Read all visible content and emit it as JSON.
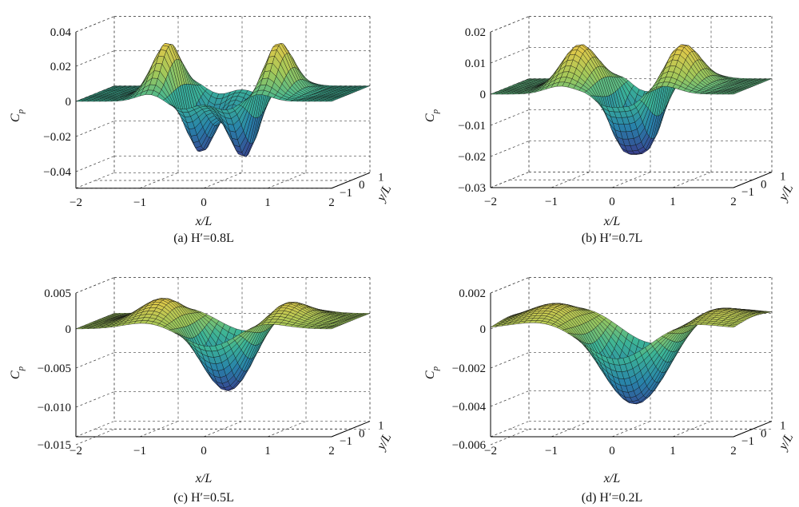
{
  "chart_data": [
    {
      "id": "a",
      "type": "surface",
      "caption": "(a) H′=0.8L",
      "xlabel": "x/L",
      "ylabel": "y/L",
      "zlabel": "C",
      "zlabel_sub": "p",
      "x_ticks": [
        "−2",
        "−1",
        "0",
        "1",
        "2"
      ],
      "y_ticks": [
        "−1",
        "0",
        "1"
      ],
      "z_ticks": [
        "0.04",
        "0.02",
        "0",
        "−0.02",
        "−0.04"
      ],
      "zlim": [
        -0.05,
        0.04
      ],
      "xlim": [
        -2,
        2
      ],
      "ylim": [
        -1,
        1
      ],
      "surface": {
        "peak_amplitude": 0.031,
        "peak_x": 0.85,
        "peak_width": 0.2,
        "trough_amplitude": -0.038,
        "trough_x": 0.35,
        "trough_width": 0.2,
        "trough_shape": "double-well",
        "y_width": 0.5
      }
    },
    {
      "id": "b",
      "type": "surface",
      "caption": "(b) H′=0.7L",
      "xlabel": "x/L",
      "ylabel": "y/L",
      "zlabel": "C",
      "zlabel_sub": "p",
      "x_ticks": [
        "−2",
        "−1",
        "0",
        "1",
        "2"
      ],
      "y_ticks": [
        "−1",
        "0",
        "1"
      ],
      "z_ticks": [
        "0.02",
        "0.01",
        "0",
        "−0.01",
        "−0.02",
        "−0.03"
      ],
      "zlim": [
        -0.03,
        0.02
      ],
      "xlim": [
        -2,
        2
      ],
      "ylim": [
        -1,
        1
      ],
      "surface": {
        "peak_amplitude": 0.0135,
        "peak_x": 0.85,
        "peak_width": 0.25,
        "trough_amplitude": -0.022,
        "trough_x": 0.35,
        "trough_width": 0.28,
        "trough_shape": "flat-bottom",
        "y_width": 0.55
      }
    },
    {
      "id": "c",
      "type": "surface",
      "caption": "(c) H′=0.5L",
      "xlabel": "x/L",
      "ylabel": "y/L",
      "zlabel": "C",
      "zlabel_sub": "p",
      "x_ticks": [
        "−2",
        "−1",
        "0",
        "1",
        "2"
      ],
      "y_ticks": [
        "−1",
        "0",
        "1"
      ],
      "z_ticks": [
        "0.005",
        "0",
        "−0.005",
        "−0.010",
        "−0.015"
      ],
      "zlim": [
        -0.015,
        0.005
      ],
      "xlim": [
        -2,
        2
      ],
      "ylim": [
        -1,
        1
      ],
      "surface": {
        "peak_amplitude": 0.0035,
        "peak_x": 0.9,
        "peak_width": 0.35,
        "trough_amplitude": -0.01,
        "trough_x": 0.35,
        "trough_width": 0.4,
        "trough_shape": "single",
        "y_width": 0.6
      }
    },
    {
      "id": "d",
      "type": "surface",
      "caption": "(d) H′=0.2L",
      "xlabel": "x/L",
      "ylabel": "y/L",
      "zlabel": "C",
      "zlabel_sub": "p",
      "x_ticks": [
        "−2",
        "−1",
        "0",
        "1",
        "2"
      ],
      "y_ticks": [
        "−1",
        "0",
        "1"
      ],
      "z_ticks": [
        "0.002",
        "0",
        "−0.002",
        "−0.004",
        "−0.006"
      ],
      "zlim": [
        -0.006,
        0.002
      ],
      "xlim": [
        -2,
        2
      ],
      "ylim": [
        -1,
        1
      ],
      "surface": {
        "peak_amplitude": 0.0015,
        "peak_x": 1.0,
        "peak_width": 0.55,
        "trough_amplitude": -0.0052,
        "trough_x": 0.35,
        "trough_width": 0.6,
        "trough_shape": "single",
        "y_width": 0.7
      }
    }
  ]
}
